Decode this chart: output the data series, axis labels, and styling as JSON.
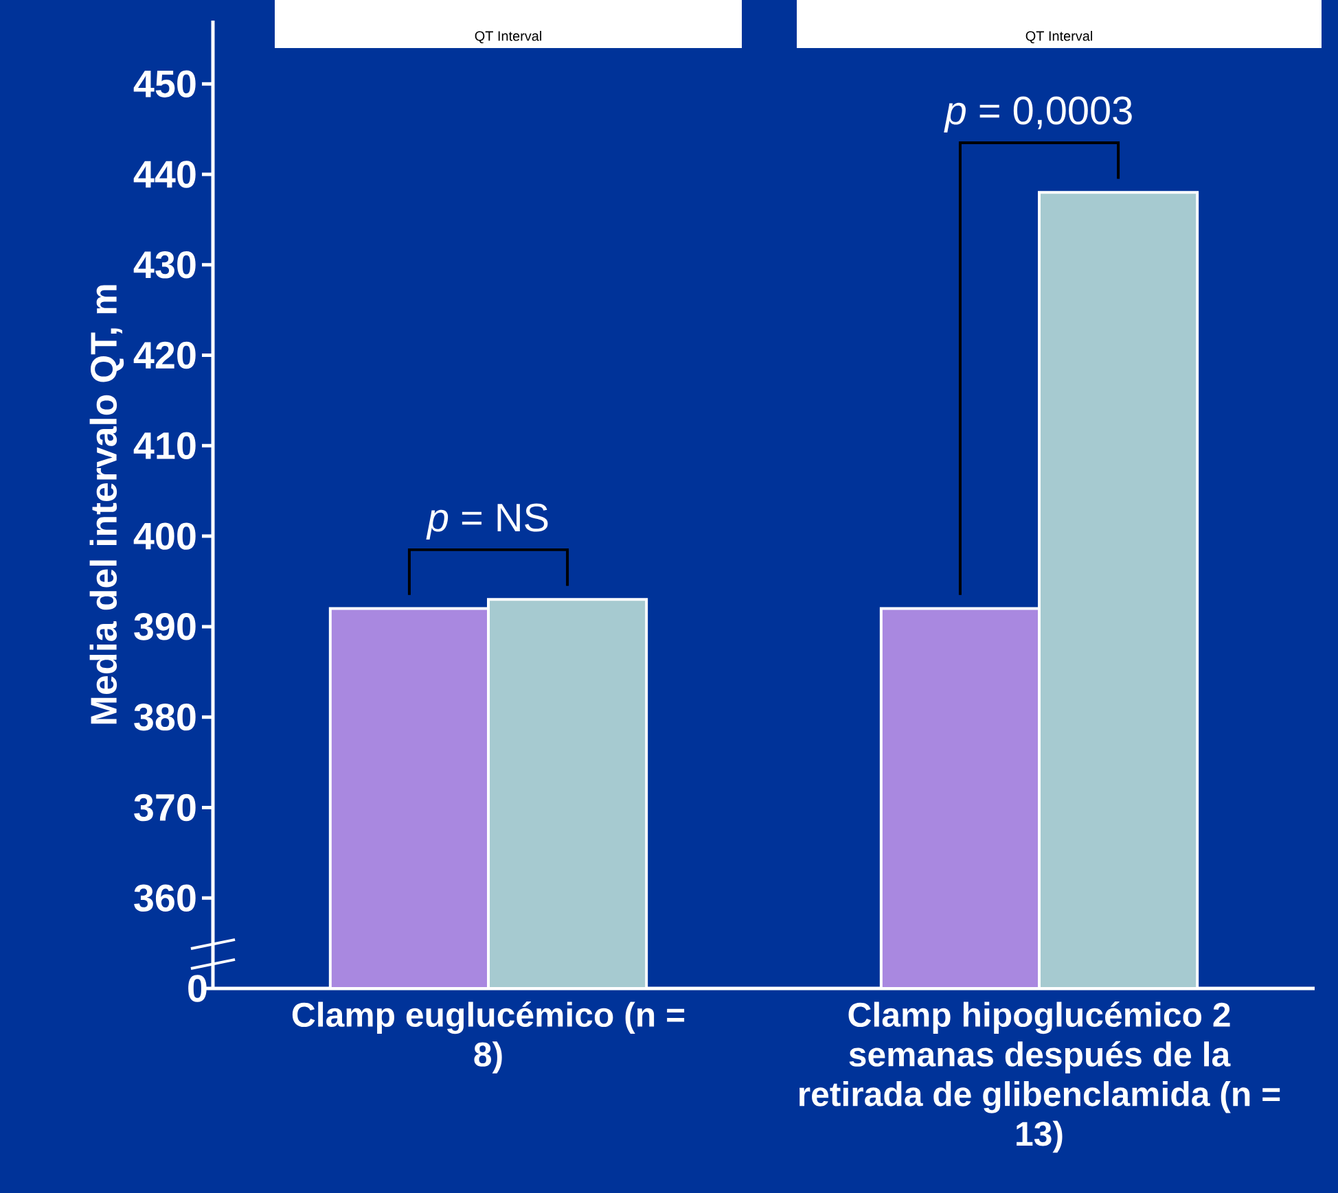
{
  "chart_data": {
    "type": "bar",
    "ylabel": "Media del intervalo QT, m",
    "categories": [
      "Clamp euglucémico (n = 8)",
      "Clamp hipoglucémico 2 semanas después de la retirada de glibenclamida (n = 13)"
    ],
    "series": [
      {
        "color": "#a988e0",
        "values": [
          392,
          392
        ]
      },
      {
        "color": "#a6cad0",
        "values": [
          393,
          438
        ]
      }
    ],
    "ylim": [
      350,
      457
    ],
    "yticks": [
      360,
      370,
      380,
      390,
      400,
      410,
      420,
      430,
      440,
      450
    ],
    "annotations": [
      "*p* = NS",
      "*p* = 0,0003",
      "QT Interval",
      "QT Interval",
      "0"
    ]
  }
}
